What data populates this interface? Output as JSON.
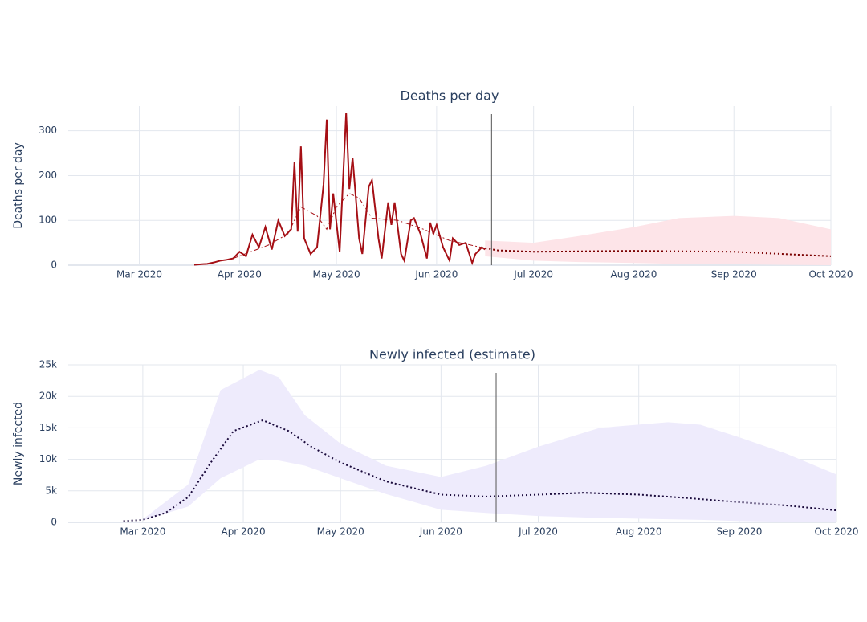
{
  "chart_data": [
    {
      "type": "line",
      "title": "Deaths per day",
      "y_label": "Deaths per day",
      "xlim": [
        "2020-02-08",
        "2020-10-01"
      ],
      "ylim": [
        0,
        355
      ],
      "xticks": [
        {
          "value": "2020-03-01",
          "label": "Mar 2020"
        },
        {
          "value": "2020-04-01",
          "label": "Apr 2020"
        },
        {
          "value": "2020-05-01",
          "label": "May 2020"
        },
        {
          "value": "2020-06-01",
          "label": "Jun 2020"
        },
        {
          "value": "2020-07-01",
          "label": "Jul 2020"
        },
        {
          "value": "2020-08-01",
          "label": "Aug 2020"
        },
        {
          "value": "2020-09-01",
          "label": "Sep 2020"
        },
        {
          "value": "2020-10-01",
          "label": "Oct 2020"
        }
      ],
      "yticks": [
        0,
        100,
        200,
        300
      ],
      "grid": true,
      "vline": "2020-06-18",
      "series": [
        {
          "kind": "band",
          "color": "#fde4e8",
          "x": [
            "2020-06-16",
            "2020-07-01",
            "2020-07-15",
            "2020-08-01",
            "2020-08-15",
            "2020-09-01",
            "2020-09-15",
            "2020-10-01"
          ],
          "upper": [
            55,
            50,
            65,
            85,
            105,
            110,
            105,
            80
          ],
          "lower": [
            20,
            10,
            7,
            5,
            3,
            2,
            1,
            0
          ]
        },
        {
          "kind": "line",
          "color": "#a50f15",
          "dash": "solid",
          "width": 2,
          "x": [
            "2020-03-18",
            "2020-03-22",
            "2020-03-24",
            "2020-03-26",
            "2020-03-28",
            "2020-03-30",
            "2020-04-01",
            "2020-04-03",
            "2020-04-05",
            "2020-04-07",
            "2020-04-09",
            "2020-04-11",
            "2020-04-13",
            "2020-04-15",
            "2020-04-17",
            "2020-04-18",
            "2020-04-19",
            "2020-04-20",
            "2020-04-21",
            "2020-04-23",
            "2020-04-25",
            "2020-04-27",
            "2020-04-28",
            "2020-04-29",
            "2020-04-30",
            "2020-05-02",
            "2020-05-04",
            "2020-05-05",
            "2020-05-06",
            "2020-05-08",
            "2020-05-09",
            "2020-05-11",
            "2020-05-12",
            "2020-05-14",
            "2020-05-15",
            "2020-05-17",
            "2020-05-18",
            "2020-05-19",
            "2020-05-21",
            "2020-05-22",
            "2020-05-24",
            "2020-05-25",
            "2020-05-27",
            "2020-05-29",
            "2020-05-30",
            "2020-05-31",
            "2020-06-01",
            "2020-06-03",
            "2020-06-05",
            "2020-06-06",
            "2020-06-08",
            "2020-06-10",
            "2020-06-12",
            "2020-06-13",
            "2020-06-15",
            "2020-06-16"
          ],
          "values": [
            1,
            3,
            6,
            10,
            12,
            15,
            30,
            20,
            68,
            40,
            85,
            35,
            100,
            65,
            80,
            230,
            75,
            265,
            60,
            25,
            40,
            180,
            325,
            80,
            160,
            30,
            340,
            170,
            240,
            60,
            25,
            175,
            190,
            60,
            15,
            140,
            90,
            140,
            25,
            10,
            100,
            105,
            70,
            15,
            95,
            70,
            90,
            40,
            10,
            60,
            45,
            50,
            5,
            25,
            40,
            35
          ]
        },
        {
          "kind": "line",
          "color": "#a50f15",
          "dash": "dashdot",
          "width": 1,
          "x": [
            "2020-03-30",
            "2020-04-10",
            "2020-04-16",
            "2020-04-20",
            "2020-04-25",
            "2020-04-28",
            "2020-05-01",
            "2020-05-05",
            "2020-05-08",
            "2020-05-12",
            "2020-05-20",
            "2020-05-28",
            "2020-06-05",
            "2020-06-16"
          ],
          "values": [
            15,
            45,
            70,
            130,
            110,
            80,
            130,
            160,
            150,
            105,
            100,
            80,
            55,
            38
          ]
        },
        {
          "kind": "line",
          "color": "#7a0000",
          "dash": "dot",
          "width": 2,
          "x": [
            "2020-06-16",
            "2020-06-20",
            "2020-07-01",
            "2020-08-01",
            "2020-09-01",
            "2020-10-01"
          ],
          "values": [
            38,
            33,
            30,
            32,
            30,
            20
          ]
        }
      ]
    },
    {
      "type": "line",
      "title": "Newly infected (estimate)",
      "y_label": "Newly infected",
      "xlim": [
        "2020-02-07",
        "2020-10-01"
      ],
      "ylim": [
        0,
        25000
      ],
      "xticks": [
        {
          "value": "2020-03-01",
          "label": "Mar 2020"
        },
        {
          "value": "2020-04-01",
          "label": "Apr 2020"
        },
        {
          "value": "2020-05-01",
          "label": "May 2020"
        },
        {
          "value": "2020-06-01",
          "label": "Jun 2020"
        },
        {
          "value": "2020-07-01",
          "label": "Jul 2020"
        },
        {
          "value": "2020-08-01",
          "label": "Aug 2020"
        },
        {
          "value": "2020-09-01",
          "label": "Sep 2020"
        },
        {
          "value": "2020-10-01",
          "label": "Oct 2020"
        }
      ],
      "yticks": [
        0,
        {
          "value": 5000,
          "label": "5k"
        },
        {
          "value": 10000,
          "label": "10k"
        },
        {
          "value": 15000,
          "label": "15k"
        },
        {
          "value": 20000,
          "label": "20k"
        },
        {
          "value": 25000,
          "label": "25k"
        }
      ],
      "grid": true,
      "vline": "2020-06-18",
      "series": [
        {
          "kind": "band",
          "color": "#eeebfc",
          "x": [
            "2020-03-01",
            "2020-03-15",
            "2020-03-25",
            "2020-04-06",
            "2020-04-12",
            "2020-04-20",
            "2020-05-01",
            "2020-05-15",
            "2020-06-01",
            "2020-06-15",
            "2020-07-01",
            "2020-07-20",
            "2020-08-10",
            "2020-08-20",
            "2020-09-01",
            "2020-09-15",
            "2020-10-01"
          ],
          "upper": [
            500,
            6000,
            21000,
            24200,
            23000,
            17000,
            12500,
            9000,
            7200,
            9000,
            12000,
            15000,
            15900,
            15500,
            13500,
            11000,
            7600
          ],
          "lower": [
            300,
            2500,
            7000,
            10000,
            9800,
            9000,
            7000,
            4500,
            2000,
            1500,
            1000,
            700,
            500,
            400,
            200,
            100,
            0
          ]
        },
        {
          "kind": "line",
          "color": "#1a0a3c",
          "dash": "dot",
          "width": 2,
          "x": [
            "2020-02-24",
            "2020-03-01",
            "2020-03-08",
            "2020-03-15",
            "2020-03-22",
            "2020-03-29",
            "2020-04-07",
            "2020-04-15",
            "2020-04-22",
            "2020-05-01",
            "2020-05-15",
            "2020-06-01",
            "2020-06-15",
            "2020-07-01",
            "2020-07-15",
            "2020-08-01",
            "2020-08-15",
            "2020-09-01",
            "2020-09-15",
            "2020-10-01"
          ],
          "values": [
            200,
            400,
            1500,
            4000,
            9500,
            14500,
            16200,
            14500,
            12000,
            9500,
            6500,
            4400,
            4100,
            4400,
            4700,
            4400,
            3900,
            3200,
            2700,
            1900
          ]
        }
      ]
    }
  ]
}
